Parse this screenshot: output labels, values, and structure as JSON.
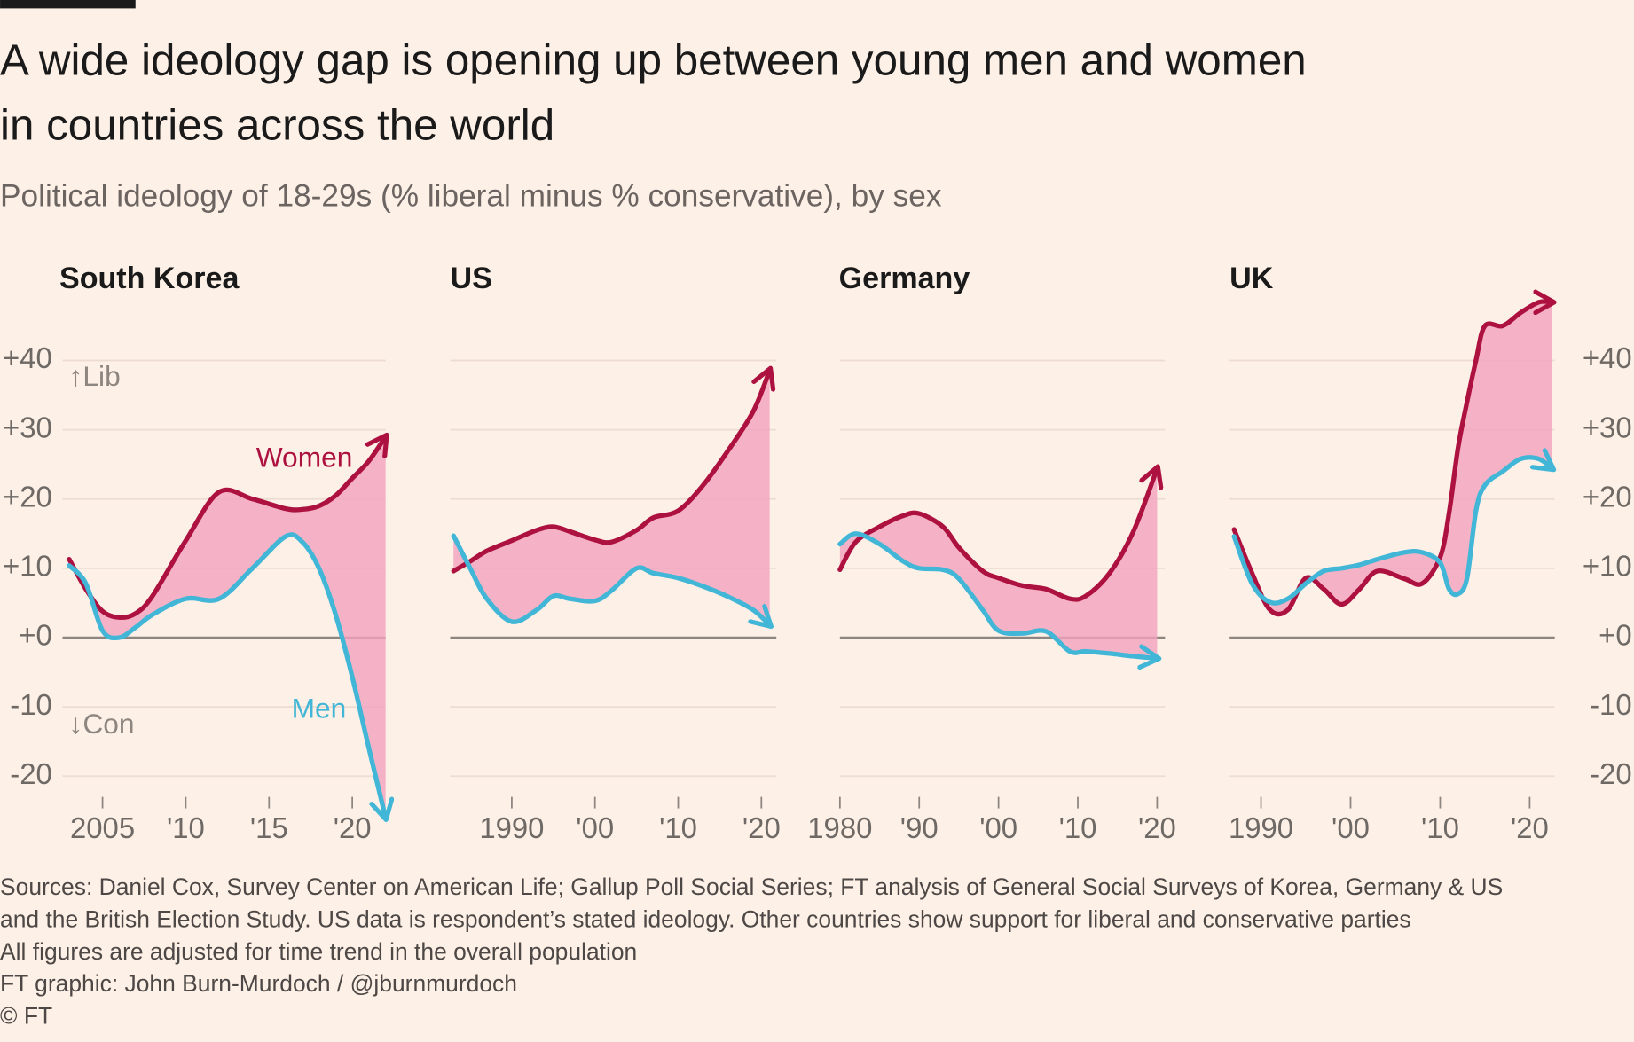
{
  "title_lines": [
    "A wide ideology gap is opening up between young men and women",
    "in countries across the world"
  ],
  "subtitle": "Political ideology of 18-29s (% liberal minus % conservative), by sex",
  "notes": [
    "Sources: Daniel Cox, Survey Center on American Life; Gallup Poll Social Series; FT analysis of General Social Surveys of Korea, Germany & US",
    "and the British Election Study. US data is respondent’s stated ideology. Other countries show support for liberal and conservative parties",
    "All figures are adjusted for time trend in the overall population",
    "FT graphic: John Burn-Murdoch / @jburnmurdoch",
    "© FT"
  ],
  "chart_data": [
    {
      "type": "line",
      "title": "South Korea",
      "ytick_side": "left",
      "series_labels": true,
      "annotations": [
        "↑Lib",
        "↓Con"
      ],
      "gap_color": "#f3a3bf",
      "x": [
        2003,
        2004,
        2005,
        2006,
        2007,
        2008,
        2010,
        2012,
        2014,
        2016,
        2017,
        2018,
        2019,
        2020,
        2021,
        2022
      ],
      "series": [
        {
          "name": "Women",
          "color": "#ad1140",
          "values": [
            11.3,
            7,
            3.8,
            2.9,
            3.5,
            6,
            14,
            21,
            20,
            18.6,
            18.5,
            19,
            20.5,
            23,
            25.5,
            29
          ]
        },
        {
          "name": "Men",
          "color": "#41b6d6",
          "values": [
            10.4,
            7.8,
            1,
            0,
            1.5,
            3.3,
            5.6,
            5.6,
            10,
            14.6,
            13.8,
            10,
            3.3,
            -5.7,
            -16,
            -26
          ]
        }
      ],
      "xlim": [
        2002.6,
        2022
      ],
      "xticks": [
        2005,
        {
          "value": 2010,
          "label": "'10"
        },
        {
          "value": 2015,
          "label": "'15"
        },
        {
          "value": 2020,
          "label": "'20"
        }
      ],
      "ylim": [
        -27,
        50
      ],
      "yticks": [
        {
          "value": 40,
          "label": "+40"
        },
        {
          "value": 30,
          "label": "+30"
        },
        {
          "value": 20,
          "label": "+20"
        },
        {
          "value": 10,
          "label": "+10"
        },
        {
          "value": 0,
          "label": "+0"
        },
        -10,
        -20
      ],
      "grid": true
    },
    {
      "type": "line",
      "title": "US",
      "gap_color": "#f3a3bf",
      "x": [
        1983,
        1985,
        1987,
        1990,
        1993,
        1995,
        1997,
        2000,
        2002,
        2005,
        2007,
        2010,
        2013,
        2016,
        2019,
        2021
      ],
      "series": [
        {
          "name": "Women",
          "color": "#ad1140",
          "values": [
            9.6,
            11,
            12.5,
            14,
            15.5,
            16,
            15.3,
            14.1,
            13.8,
            15.5,
            17.3,
            18.3,
            22,
            27,
            32.6,
            38.6
          ]
        },
        {
          "name": "Men",
          "color": "#41b6d6",
          "values": [
            14.7,
            10,
            5.6,
            2.3,
            4,
            6,
            5.6,
            5.3,
            6.8,
            10,
            9.3,
            8.6,
            7.4,
            5.9,
            4,
            1.8
          ]
        }
      ],
      "xlim": [
        1982.6,
        2021.8
      ],
      "xticks": [
        1990,
        {
          "value": 2000,
          "label": "'00"
        },
        {
          "value": 2010,
          "label": "'10"
        },
        {
          "value": 2020,
          "label": "'20"
        }
      ],
      "ylim": [
        -27,
        50
      ],
      "yticks": [
        {
          "value": 40,
          "label": "+40"
        },
        {
          "value": 30,
          "label": "+30"
        },
        {
          "value": 20,
          "label": "+20"
        },
        {
          "value": 10,
          "label": "+10"
        },
        {
          "value": 0,
          "label": "+0"
        },
        -10,
        -20
      ],
      "grid": true
    },
    {
      "type": "line",
      "title": "Germany",
      "gap_color": "#f3a3bf",
      "x": [
        1980,
        1982,
        1985,
        1988,
        1990,
        1993,
        1995,
        1998,
        2000,
        2003,
        2006,
        2009,
        2011,
        2014,
        2017,
        2020
      ],
      "series": [
        {
          "name": "Women",
          "color": "#ad1140",
          "values": [
            9.8,
            13.8,
            16,
            17.6,
            17.9,
            16,
            13,
            9.6,
            8.6,
            7.5,
            7,
            5.6,
            6,
            9.3,
            15.3,
            24.4
          ]
        },
        {
          "name": "Men",
          "color": "#41b6d6",
          "values": [
            13.5,
            15,
            13.5,
            11,
            10,
            9.8,
            8.5,
            4,
            1,
            0.6,
            0.9,
            -2,
            -2,
            -2.3,
            -2.7,
            -3
          ]
        }
      ],
      "xlim": [
        1980,
        2021
      ],
      "xticks": [
        1980,
        {
          "value": 1990,
          "label": "'90"
        },
        {
          "value": 2000,
          "label": "'00"
        },
        {
          "value": 2010,
          "label": "'10"
        },
        {
          "value": 2020,
          "label": "'20"
        }
      ],
      "ylim": [
        -27,
        50
      ],
      "yticks": [
        {
          "value": 40,
          "label": "+40"
        },
        {
          "value": 30,
          "label": "+30"
        },
        {
          "value": 20,
          "label": "+20"
        },
        {
          "value": 10,
          "label": "+10"
        },
        {
          "value": 0,
          "label": "+0"
        },
        -10,
        -20
      ],
      "grid": true
    },
    {
      "type": "line",
      "title": "UK",
      "ytick_side": "right",
      "gap_color": "#f3a3bf",
      "x": [
        1987,
        1989,
        1991,
        1993,
        1995,
        1997,
        1999,
        2001,
        2003,
        2006,
        2008,
        2010,
        2011,
        2012,
        2013,
        2014,
        2015,
        2017,
        2019,
        2021,
        2022.5
      ],
      "series": [
        {
          "name": "Women",
          "color": "#ad1140",
          "values": [
            15.6,
            9.3,
            4,
            4,
            8.6,
            7,
            4.8,
            7,
            9.6,
            8.5,
            7.8,
            11.6,
            18,
            27.4,
            34,
            40,
            45,
            45,
            46.9,
            48.4,
            48.4
          ]
        },
        {
          "name": "Men",
          "color": "#41b6d6",
          "values": [
            14.6,
            7.8,
            5.1,
            5.6,
            7.8,
            9.6,
            10,
            10.5,
            11.3,
            12.3,
            12.3,
            10.8,
            7,
            6.3,
            8.6,
            18.3,
            22,
            24,
            25.8,
            25.8,
            24.4
          ]
        }
      ],
      "xlim": [
        1986.5,
        2022.8
      ],
      "xticks": [
        1990,
        {
          "value": 2000,
          "label": "'00"
        },
        {
          "value": 2010,
          "label": "'10"
        },
        {
          "value": 2020,
          "label": "'20"
        }
      ],
      "ylim": [
        -27,
        50
      ],
      "yticks": [
        {
          "value": 40,
          "label": "+40"
        },
        {
          "value": 30,
          "label": "+30"
        },
        {
          "value": 20,
          "label": "+20"
        },
        {
          "value": 10,
          "label": "+10"
        },
        {
          "value": 0,
          "label": "+0"
        },
        -10,
        -20
      ],
      "grid": true
    }
  ]
}
